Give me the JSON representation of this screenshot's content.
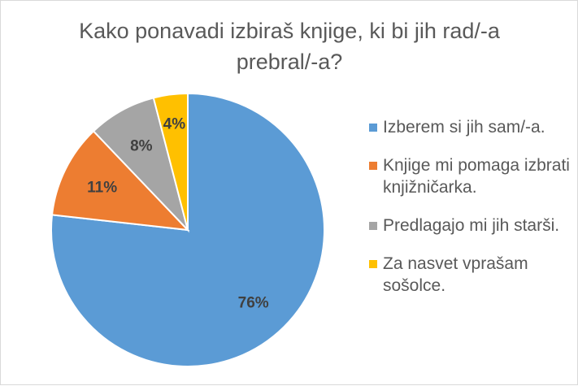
{
  "chart_data": {
    "type": "pie",
    "title": "Kako ponavadi izbiraš knjige, ki bi jih rad/-a prebral/-a?",
    "categories": [
      "Izberem si jih sam/-a.",
      "Knjige mi pomaga izbrati knjižničarka.",
      "Predlagajo mi jih starši.",
      "Za nasvet vprašam sošolce."
    ],
    "values": [
      76,
      11,
      8,
      4
    ],
    "data_labels": [
      "76%",
      "11%",
      "8%",
      "4%"
    ],
    "colors": [
      "#5b9bd5",
      "#ed7d31",
      "#a5a5a5",
      "#ffc000"
    ],
    "legend_position": "right"
  }
}
